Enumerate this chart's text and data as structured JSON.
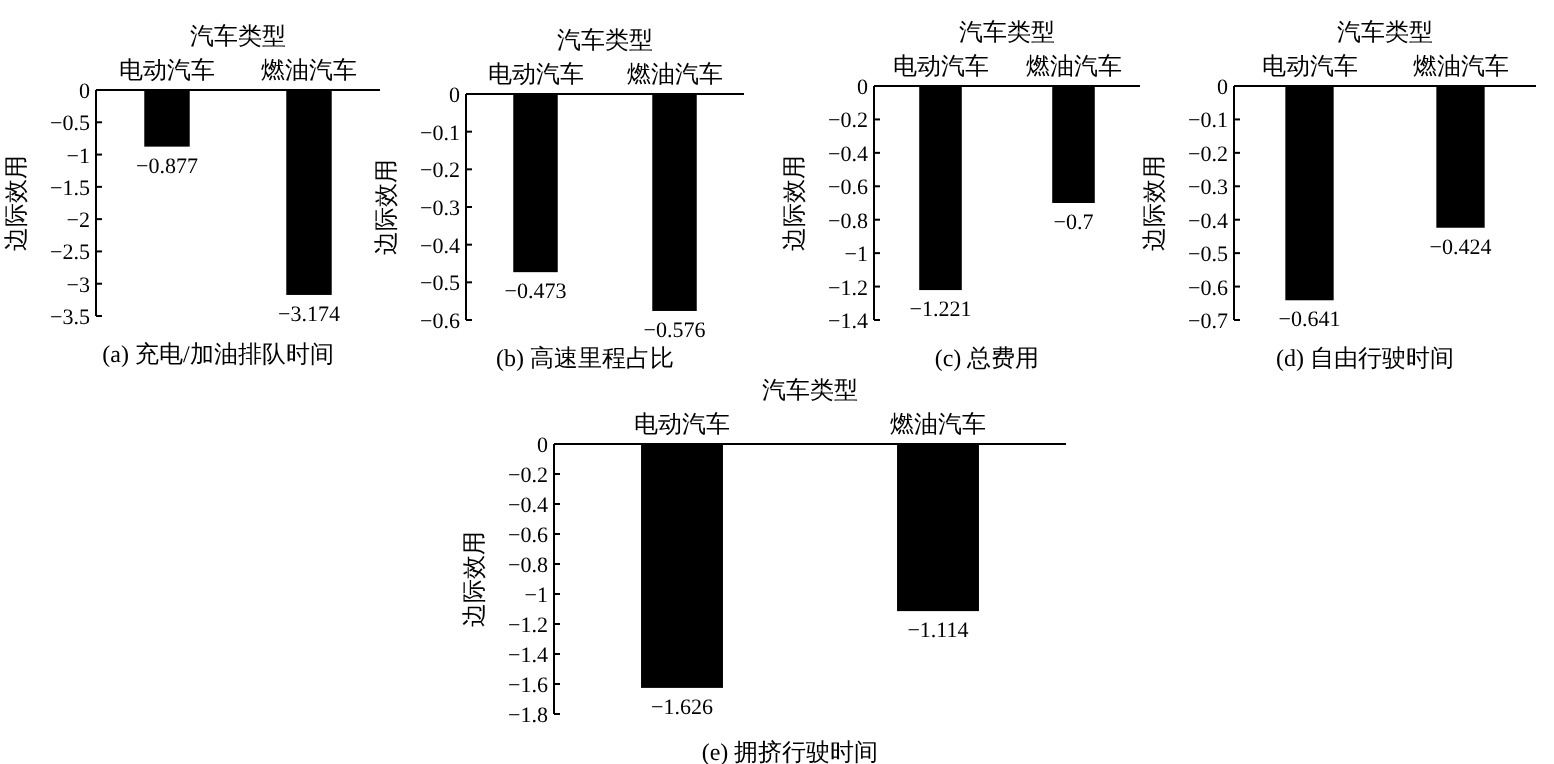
{
  "chart_data": [
    {
      "type": "bar",
      "title": "(a) 充电/加油排队时间",
      "xlabel": "汽车类型",
      "ylabel": "边际效用",
      "categories": [
        "电动汽车",
        "燃油汽车"
      ],
      "values": [
        -0.877,
        -3.174
      ],
      "color": "#000000",
      "ylim": [
        -3.5,
        0
      ],
      "yticks": [
        0,
        -0.5,
        -1,
        -1.5,
        -2,
        -2.5,
        -3,
        -3.5
      ],
      "data_labels": true
    },
    {
      "type": "bar",
      "title": "(b) 高速里程占比",
      "xlabel": "汽车类型",
      "ylabel": "边际效用",
      "categories": [
        "电动汽车",
        "燃油汽车"
      ],
      "values": [
        -0.473,
        -0.576
      ],
      "color": "#000000",
      "ylim": [
        -0.6,
        0
      ],
      "yticks": [
        0,
        -0.1,
        -0.2,
        -0.3,
        -0.4,
        -0.5,
        -0.6
      ],
      "data_labels": true
    },
    {
      "type": "bar",
      "title": "(c) 总费用",
      "xlabel": "汽车类型",
      "ylabel": "边际效用",
      "categories": [
        "电动汽车",
        "燃油汽车"
      ],
      "values": [
        -1.221,
        -0.7
      ],
      "color": "#000000",
      "ylim": [
        -1.4,
        0
      ],
      "yticks": [
        0,
        -0.2,
        -0.4,
        -0.6,
        -0.8,
        -1,
        -1.2,
        -1.4
      ],
      "data_labels": true
    },
    {
      "type": "bar",
      "title": "(d) 自由行驶时间",
      "xlabel": "汽车类型",
      "ylabel": "边际效用",
      "categories": [
        "电动汽车",
        "燃油汽车"
      ],
      "values": [
        -0.641,
        -0.424
      ],
      "color": "#000000",
      "ylim": [
        -0.7,
        0
      ],
      "yticks": [
        0,
        -0.1,
        -0.2,
        -0.3,
        -0.4,
        -0.5,
        -0.6,
        -0.7
      ],
      "data_labels": true
    },
    {
      "type": "bar",
      "title": "(e) 拥挤行驶时间",
      "xlabel": "汽车类型",
      "ylabel": "边际效用",
      "categories": [
        "电动汽车",
        "燃油汽车"
      ],
      "values": [
        -1.626,
        -1.114
      ],
      "color": "#000000",
      "ylim": [
        -1.8,
        0
      ],
      "yticks": [
        0,
        -0.2,
        -0.4,
        -0.6,
        -0.8,
        -1,
        -1.2,
        -1.4,
        -1.6,
        -1.8
      ],
      "data_labels": true
    }
  ]
}
